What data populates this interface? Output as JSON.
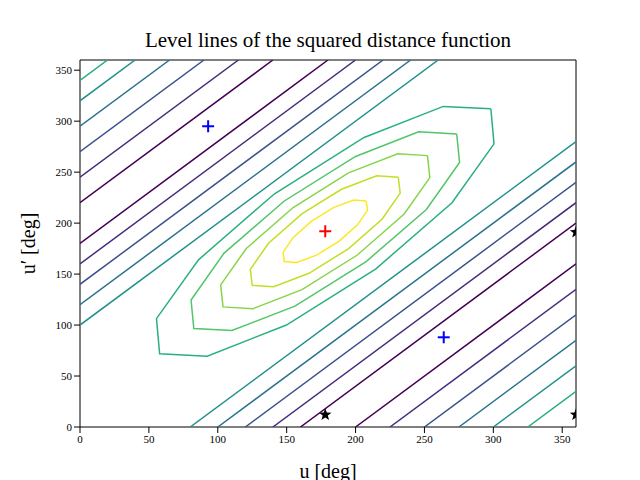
{
  "chart_data": {
    "type": "contour",
    "title": "Level lines of the squared distance function",
    "xlabel": "u [deg]",
    "ylabel": "u′ [deg]",
    "xlim": [
      0,
      360
    ],
    "xticks": [
      0,
      50,
      100,
      150,
      200,
      250,
      300,
      350
    ],
    "ylim": [
      0,
      360
    ],
    "yticks": [
      0,
      50,
      100,
      150,
      200,
      250,
      300,
      350
    ],
    "grid": false,
    "series": [
      {
        "type": "line",
        "color": "#fde725",
        "x": [
          207.7,
          198.8,
          184.3,
          168.1,
          154.6,
          147.4,
          148.3,
          157.3,
          171.7,
          187.9,
          201.4,
          208.7,
          207.7
        ],
        "y": [
          221.7,
          222.6,
          215.4,
          201.9,
          185.7,
          171.3,
          162.3,
          161.4,
          168.6,
          182.1,
          198.3,
          212.8,
          221.7
        ]
      },
      {
        "type": "line",
        "color": "#c2df23",
        "x": [
          231,
          215.4,
          189.8,
          161,
          136.8,
          123.6,
          125,
          140.6,
          166.2,
          195,
          219.2,
          232.4,
          231
        ],
        "y": [
          245,
          246.4,
          233.2,
          209,
          180.2,
          154.6,
          139,
          137.6,
          150.8,
          175,
          203.8,
          229.4,
          245
        ]
      },
      {
        "type": "line",
        "color": "#86d549",
        "x": [
          252.2,
          230.6,
          194.9,
          154.7,
          120.7,
          102.1,
          103.8,
          125.4,
          161.1,
          201.3,
          235.3,
          253.9,
          252.2
        ],
        "y": [
          266.2,
          268.0,
          249.3,
          215.3,
          175.1,
          139.4,
          117.8,
          116.0,
          134.7,
          168.7,
          208.9,
          244.6,
          266.2
        ]
      },
      {
        "type": "line",
        "color": "#52c569",
        "x": [
          273.4,
          245.8,
          200,
          148.3,
          104.6,
          80.6,
          82.6,
          110.2,
          156,
          207.7,
          251.4,
          275.5,
          273.4
        ],
        "y": [
          287.4,
          289.5,
          265.4,
          221.7,
          170.6,
          124.5,
          96.6,
          94.6,
          118.6,
          162.3,
          213.4,
          259.5,
          287.4
        ]
      },
      {
        "type": "line",
        "color": "#2ab07f",
        "x": [
          298.2,
          263.7,
          206.2,
          141.2,
          86.0,
          55.5,
          57.8,
          92.3,
          149.8,
          214.8,
          270,
          300.5,
          298.2
        ],
        "y": [
          312.2,
          314.5,
          284,
          228.8,
          164.0,
          106.3,
          71.8,
          69.5,
          100,
          155.2,
          220,
          277.7,
          312.2
        ]
      },
      {
        "type": "line",
        "color": "#21918c",
        "x": [
          0,
          260
        ],
        "y": [
          100,
          360
        ]
      },
      {
        "type": "line",
        "color": "#2c728e",
        "x": [
          0,
          240
        ],
        "y": [
          120,
          360
        ]
      },
      {
        "type": "line",
        "color": "#3b528b",
        "x": [
          0,
          220
        ],
        "y": [
          140,
          360
        ]
      },
      {
        "type": "line",
        "color": "#472d7b",
        "x": [
          0,
          200
        ],
        "y": [
          160,
          360
        ]
      },
      {
        "type": "line",
        "color": "#440154",
        "x": [
          0,
          180
        ],
        "y": [
          180,
          360
        ]
      },
      {
        "type": "line",
        "color": "#440154",
        "x": [
          0,
          140
        ],
        "y": [
          220,
          360
        ]
      },
      {
        "type": "line",
        "color": "#472d7b",
        "x": [
          0,
          115
        ],
        "y": [
          245,
          360
        ]
      },
      {
        "type": "line",
        "color": "#3b528b",
        "x": [
          0,
          90
        ],
        "y": [
          270,
          360
        ]
      },
      {
        "type": "line",
        "color": "#2c728e",
        "x": [
          0,
          65
        ],
        "y": [
          295,
          360
        ]
      },
      {
        "type": "line",
        "color": "#21918c",
        "x": [
          0,
          40
        ],
        "y": [
          320,
          360
        ]
      },
      {
        "type": "line",
        "color": "#27ad81",
        "x": [
          0,
          20
        ],
        "y": [
          340,
          360
        ]
      },
      {
        "type": "line",
        "color": "#21918c",
        "x": [
          80,
          360
        ],
        "y": [
          0,
          280
        ]
      },
      {
        "type": "line",
        "color": "#2c728e",
        "x": [
          100,
          360
        ],
        "y": [
          0,
          260
        ]
      },
      {
        "type": "line",
        "color": "#3b528b",
        "x": [
          120,
          360
        ],
        "y": [
          0,
          240
        ]
      },
      {
        "type": "line",
        "color": "#472d7b",
        "x": [
          140,
          360
        ],
        "y": [
          0,
          220
        ]
      },
      {
        "type": "line",
        "color": "#440154",
        "x": [
          160,
          360
        ],
        "y": [
          0,
          200
        ]
      },
      {
        "type": "line",
        "color": "#440154",
        "x": [
          200,
          360
        ],
        "y": [
          0,
          160
        ]
      },
      {
        "type": "line",
        "color": "#472d7b",
        "x": [
          225,
          360
        ],
        "y": [
          0,
          135
        ]
      },
      {
        "type": "line",
        "color": "#3b528b",
        "x": [
          250,
          360
        ],
        "y": [
          0,
          110
        ]
      },
      {
        "type": "line",
        "color": "#2c728e",
        "x": [
          275,
          360
        ],
        "y": [
          0,
          85
        ]
      },
      {
        "type": "line",
        "color": "#21918c",
        "x": [
          300,
          360
        ],
        "y": [
          0,
          60
        ]
      },
      {
        "type": "line",
        "color": "#27ad81",
        "x": [
          325,
          360
        ],
        "y": [
          0,
          35
        ]
      },
      {
        "type": "scatter",
        "marker": "plus",
        "color": "#ff0000",
        "x": [
          178
        ],
        "y": [
          192
        ]
      },
      {
        "type": "scatter",
        "marker": "plus",
        "color": "#0000ff",
        "x": [
          93,
          264
        ],
        "y": [
          295,
          88
        ]
      },
      {
        "type": "scatter",
        "marker": "star",
        "color": "#000000",
        "x": [
          178,
          360,
          360
        ],
        "y": [
          12,
          191,
          12
        ]
      }
    ]
  }
}
